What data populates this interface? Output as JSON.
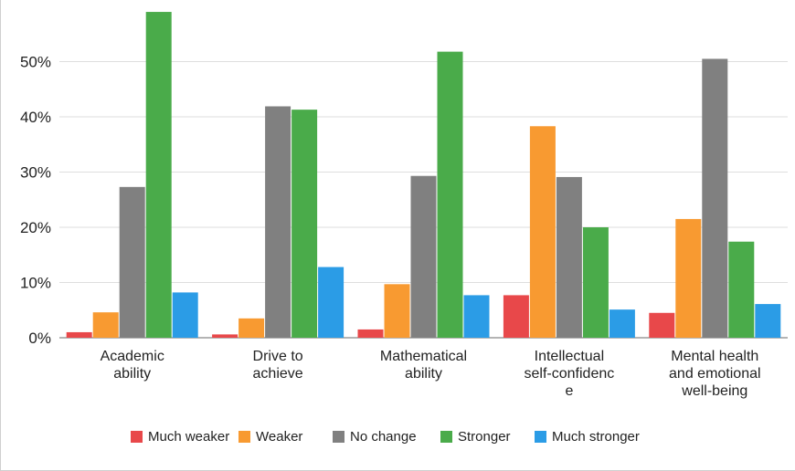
{
  "chart_data": {
    "type": "bar",
    "title": "",
    "xlabel": "",
    "ylabel": "",
    "ylim": [
      0,
      60
    ],
    "yticks": [
      "0%",
      "10%",
      "20%",
      "30%",
      "40%",
      "50%"
    ],
    "grid": true,
    "legend_position": "bottom",
    "categories": [
      [
        "Academic",
        "ability"
      ],
      [
        "Drive to",
        "achieve"
      ],
      [
        "Mathematical",
        "ability"
      ],
      [
        "Intellectual",
        "self-confidenc",
        "e"
      ],
      [
        "Mental health",
        "and emotional",
        "well-being"
      ]
    ],
    "series": [
      {
        "name": "Much weaker",
        "color": "#e8484a",
        "values": [
          1.0,
          0.6,
          1.5,
          7.7,
          4.5
        ]
      },
      {
        "name": "Weaker",
        "color": "#f89a31",
        "values": [
          4.6,
          3.5,
          9.7,
          38.3,
          21.5
        ]
      },
      {
        "name": "No change",
        "color": "#808080",
        "values": [
          27.3,
          41.9,
          29.3,
          29.1,
          50.5
        ]
      },
      {
        "name": "Stronger",
        "color": "#4aab4a",
        "values": [
          59.0,
          41.3,
          51.8,
          20.0,
          17.4
        ]
      },
      {
        "name": "Much stronger",
        "color": "#2b9ce6",
        "values": [
          8.2,
          12.8,
          7.7,
          5.1,
          6.1
        ]
      }
    ]
  }
}
